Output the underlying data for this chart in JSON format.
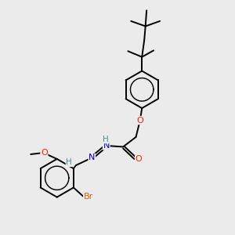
{
  "bg_color": "#ebebeb",
  "atom_colors": {
    "C": "#000000",
    "O": "#ff2200",
    "N": "#0000cc",
    "Br": "#cc6600",
    "H": "#4a9090"
  },
  "bond_color": "#000000",
  "bond_width": 1.4,
  "figsize": [
    3.0,
    3.0
  ],
  "dpi": 100,
  "xlim": [
    0,
    10
  ],
  "ylim": [
    0,
    10
  ]
}
